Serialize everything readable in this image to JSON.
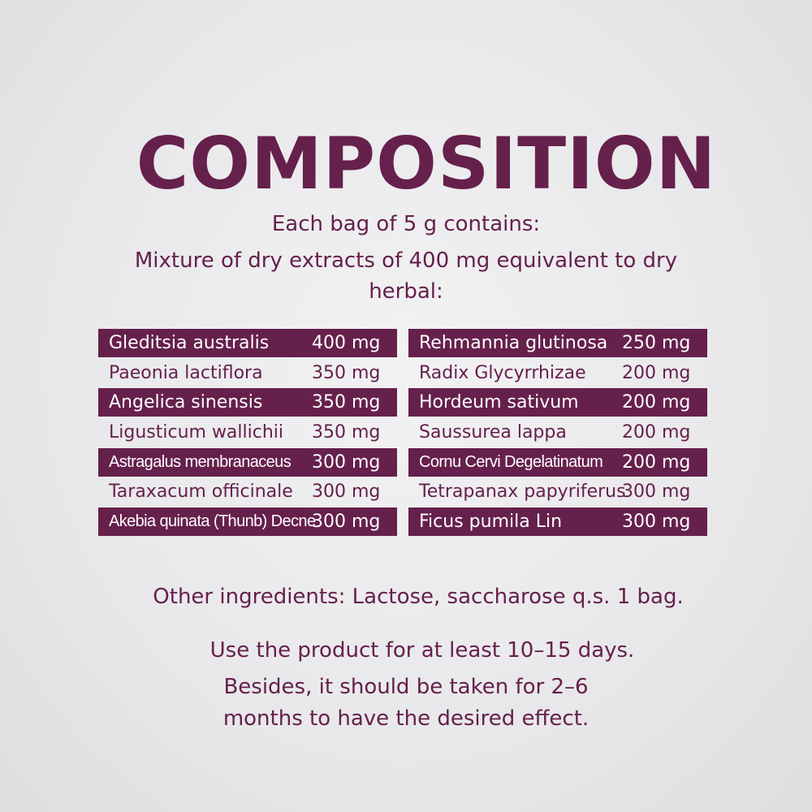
{
  "title": "COMPOSITION",
  "intro": [
    "Each bag of 5 g contains:",
    "Mixture of dry extracts of 400 mg equivalent to dry",
    "herbal:"
  ],
  "left": [
    {
      "name": "Gleditsia australis",
      "amount": "400 mg"
    },
    {
      "name": "Paeonia lactiflora",
      "amount": "350 mg"
    },
    {
      "name": "Angelica sinensis",
      "amount": "350 mg"
    },
    {
      "name": "Ligusticum wallichii",
      "amount": "350 mg"
    },
    {
      "name": "Astragalus membranaceus",
      "amount": "300 mg"
    },
    {
      "name": "Taraxacum officinale",
      "amount": "300 mg"
    },
    {
      "name": "Akebia quinata (Thunb) Decne",
      "amount": "300 mg"
    }
  ],
  "right": [
    {
      "name": "Rehmannia glutinosa",
      "amount": "250 mg"
    },
    {
      "name": "Radix Glycyrrhizae",
      "amount": "200 mg"
    },
    {
      "name": "Hordeum sativum",
      "amount": "200 mg"
    },
    {
      "name": "Saussurea lappa",
      "amount": "200 mg"
    },
    {
      "name": "Cornu Cervi Degelatinatum",
      "amount": "200 mg"
    },
    {
      "name": "Tetrapanax papyriferus",
      "amount": "300 mg"
    },
    {
      "name": "Ficus pumila Lin",
      "amount": "300 mg"
    }
  ],
  "other": "Other ingredients: Lactose, saccharose q.s. 1 bag.",
  "usage": [
    "Use the product for at least 10–15 days.",
    "Besides, it should be taken for 2–6",
    "months to have the desired effect."
  ],
  "colors": {
    "brand": "#66204c",
    "background": "#ebebed"
  }
}
